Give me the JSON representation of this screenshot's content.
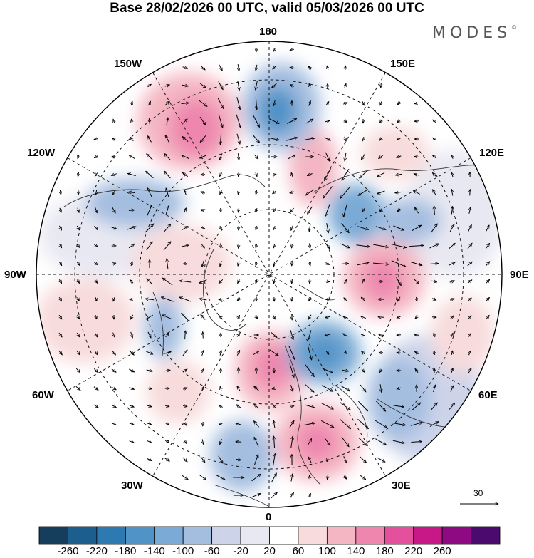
{
  "title": "Base 28/02/2026 00 UTC, valid 05/03/2026 00 UTC",
  "brand": "MODES",
  "brand_mark": "©",
  "longitude_labels": {
    "deg180": "180",
    "deg150w": "150W",
    "deg150e": "150E",
    "deg120w": "120W",
    "deg120e": "120E",
    "deg90w": "90W",
    "deg90e": "90E",
    "deg60w": "60W",
    "deg60e": "60E",
    "deg30w": "30W",
    "deg30e": "30E",
    "deg0": "0"
  },
  "reference_vector": "30",
  "colorbar": {
    "colors": [
      "#153d5c",
      "#1c5f8f",
      "#2d7ab3",
      "#4f93c7",
      "#7aaad5",
      "#a4bee0",
      "#cdd4ea",
      "#e8e8f2",
      "#ffffff",
      "#f8dbdc",
      "#f4b6c3",
      "#ee86ae",
      "#e4509b",
      "#c81787",
      "#8e0a82",
      "#4b0a6e"
    ],
    "ticks": [
      "-260",
      "-220",
      "-180",
      "-140",
      "-100",
      "-60",
      "-20",
      "20",
      "60",
      "100",
      "140",
      "180",
      "220",
      "260"
    ]
  }
}
